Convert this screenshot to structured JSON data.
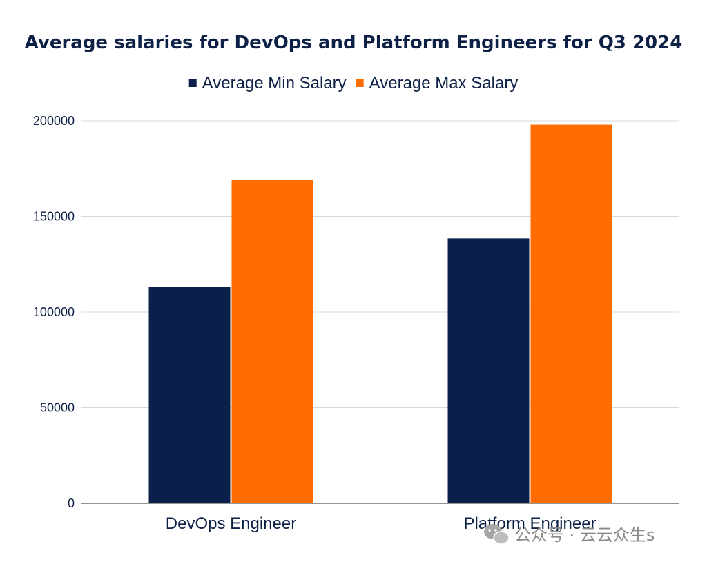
{
  "chart_data": {
    "type": "bar",
    "title": "Average salaries for DevOps and Platform Engineers for Q3 2024",
    "xlabel": "",
    "ylabel": "",
    "categories": [
      "DevOps Engineer",
      "Platform Engineer"
    ],
    "series": [
      {
        "name": "Average Min Salary",
        "color": "#0a1f4a",
        "values": [
          113000,
          138500
        ]
      },
      {
        "name": "Average Max Salary",
        "color": "#ff6d00",
        "values": [
          169000,
          198000
        ]
      }
    ],
    "ylim": [
      0,
      200000
    ],
    "yticks": [
      "0",
      "50000",
      "100000",
      "150000",
      "200000"
    ],
    "grid": true,
    "legend_position": "top-center"
  },
  "watermark": {
    "text": "公众号 · 云云众生s",
    "icon": "wechat-icon"
  }
}
